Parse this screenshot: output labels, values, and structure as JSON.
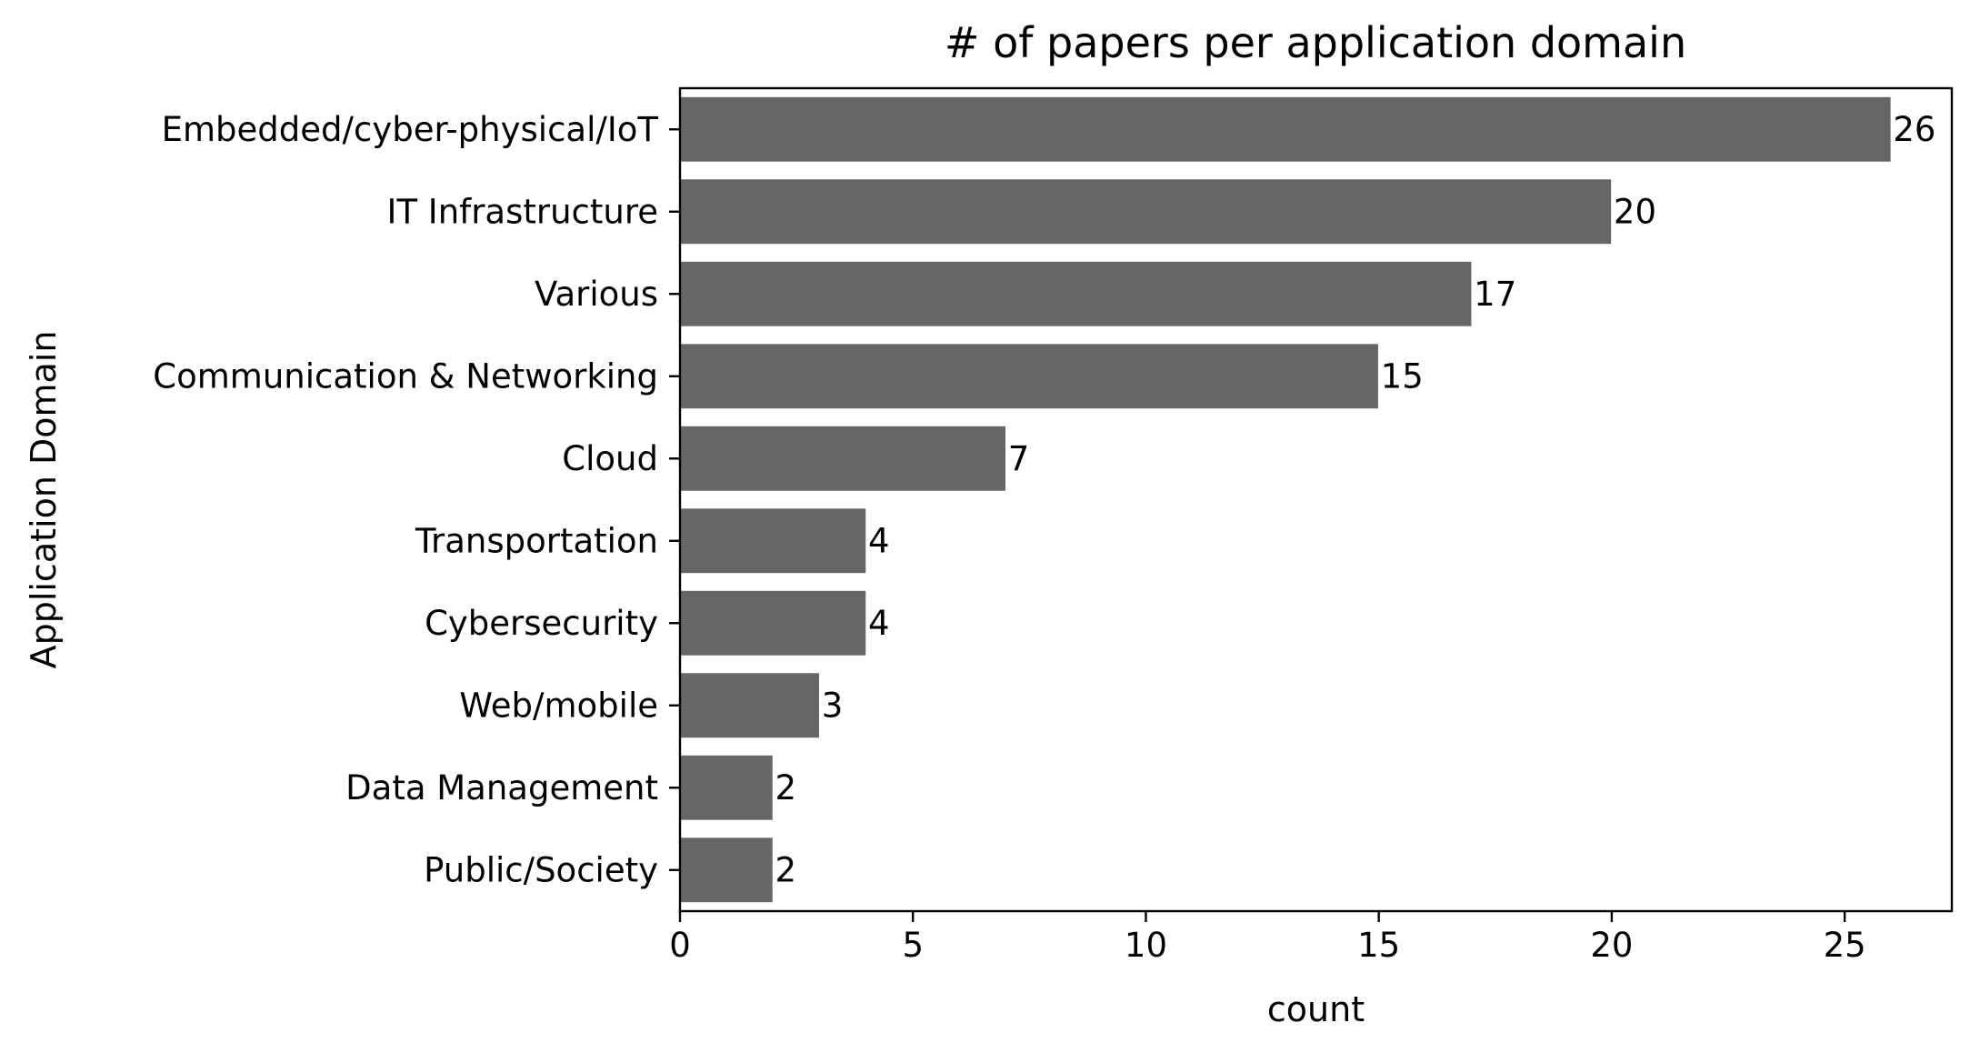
{
  "chart_data": {
    "type": "bar",
    "orientation": "horizontal",
    "title": "# of papers per application domain",
    "xlabel": "count",
    "ylabel": "Application Domain",
    "categories": [
      "Embedded/cyber-physical/IoT",
      "IT Infrastructure",
      "Various",
      "Communication & Networking",
      "Cloud",
      "Transportation",
      "Cybersecurity",
      "Web/mobile",
      "Data Management",
      "Public/Society"
    ],
    "values": [
      26,
      20,
      17,
      15,
      7,
      4,
      4,
      3,
      2,
      2
    ],
    "data_labels": [
      "26",
      "20",
      "17",
      "15",
      "7",
      "4",
      "4",
      "3",
      "2",
      "2"
    ],
    "xticks": [
      0,
      5,
      10,
      15,
      20,
      25
    ],
    "xtick_labels": [
      "0",
      "5",
      "10",
      "15",
      "20",
      "25"
    ],
    "xlim": [
      0,
      27.3
    ],
    "grid": false,
    "legend": "none",
    "bar_color": "#666666"
  }
}
